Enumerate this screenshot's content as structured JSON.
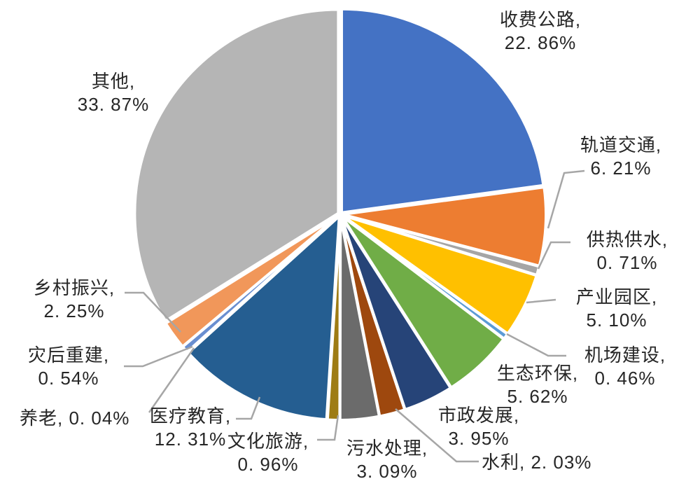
{
  "chart_data": {
    "type": "pie",
    "title": "",
    "unit": "%",
    "legend_position": "none",
    "label_style": "category-name-with-percent-callouts",
    "start_angle_deg": 0,
    "direction": "clockwise",
    "leader_line_color": "#A6A6A6",
    "slice_border_color": "#FFFFFF",
    "categories": [
      "收费公路",
      "轨道交通",
      "供热供水",
      "产业园区",
      "机场建设",
      "生态环保",
      "市政发展",
      "水利",
      "污水处理",
      "文化旅游",
      "医疗教育",
      "养老",
      "灾后重建",
      "乡村振兴",
      "其他"
    ],
    "values": [
      22.86,
      6.21,
      0.71,
      5.1,
      0.46,
      5.62,
      3.95,
      2.03,
      3.09,
      0.96,
      12.31,
      0.04,
      0.54,
      2.25,
      33.87
    ],
    "slices": [
      {
        "id": "toll-road",
        "name": "收费公路",
        "value": 22.86,
        "color": "#4472C4",
        "label_lines": [
          "收费公路,",
          "22. 86%"
        ]
      },
      {
        "id": "rail-transit",
        "name": "轨道交通",
        "value": 6.21,
        "color": "#ED7D31",
        "label_lines": [
          "轨道交通,",
          "6. 21%"
        ]
      },
      {
        "id": "heating-water-supply",
        "name": "供热供水",
        "value": 0.71,
        "color": "#A5A5A5",
        "label_lines": [
          "供热供水,",
          "0. 71%"
        ]
      },
      {
        "id": "industrial-park",
        "name": "产业园区",
        "value": 5.1,
        "color": "#FFC000",
        "label_lines": [
          "产业园区,",
          "5. 10%"
        ]
      },
      {
        "id": "airport-construction",
        "name": "机场建设",
        "value": 0.46,
        "color": "#5B9BD5",
        "label_lines": [
          "机场建设,",
          "0. 46%"
        ]
      },
      {
        "id": "eco-environment",
        "name": "生态环保",
        "value": 5.62,
        "color": "#70AD47",
        "label_lines": [
          "生态环保,",
          "5. 62%"
        ]
      },
      {
        "id": "municipal-development",
        "name": "市政发展",
        "value": 3.95,
        "color": "#264478",
        "label_lines": [
          "市政发展,",
          "3. 95%"
        ]
      },
      {
        "id": "water-conservancy",
        "name": "水利",
        "value": 2.03,
        "color": "#9E480E",
        "label_lines": [
          "水利, 2. 03%"
        ]
      },
      {
        "id": "sewage-treatment",
        "name": "污水处理",
        "value": 3.09,
        "color": "#6B6B6B",
        "label_lines": [
          "污水处理,",
          "3. 09%"
        ]
      },
      {
        "id": "culture-tourism",
        "name": "文化旅游",
        "value": 0.96,
        "color": "#9E7C14",
        "label_lines": [
          "文化旅游,",
          "0. 96%"
        ]
      },
      {
        "id": "healthcare-education",
        "name": "医疗教育",
        "value": 12.31,
        "color": "#255E91",
        "label_lines": [
          "医疗教育,",
          "12. 31%"
        ]
      },
      {
        "id": "elderly-care",
        "name": "养老",
        "value": 0.04,
        "color": "#43682B",
        "label_lines": [
          "养老, 0. 04%"
        ]
      },
      {
        "id": "post-disaster-reconstruction",
        "name": "灾后重建",
        "value": 0.54,
        "color": "#698ED0",
        "label_lines": [
          "灾后重建,",
          "0. 54%"
        ]
      },
      {
        "id": "rural-revitalization",
        "name": "乡村振兴",
        "value": 2.25,
        "color": "#F1975A",
        "label_lines": [
          "乡村振兴,",
          "2. 25%"
        ]
      },
      {
        "id": "others",
        "name": "其他",
        "value": 33.87,
        "color": "#B5B5B5",
        "label_lines": [
          "其他,",
          "33. 87%"
        ]
      }
    ]
  }
}
